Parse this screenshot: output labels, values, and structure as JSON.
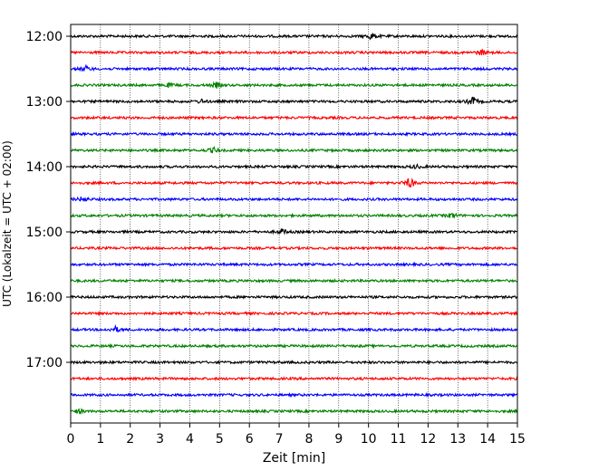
{
  "chart_data": {
    "type": "line",
    "title": "",
    "xlabel": "Zeit  [min]",
    "ylabel": "UTC (Lokalzeit = UTC + 02:00)",
    "xlim": [
      0,
      15
    ],
    "x_ticks": [
      "0",
      "1",
      "2",
      "3",
      "4",
      "5",
      "6",
      "7",
      "8",
      "9",
      "10",
      "11",
      "12",
      "13",
      "14",
      "15"
    ],
    "y_tick_labels": [
      "12:00",
      "13:00",
      "14:00",
      "15:00",
      "16:00",
      "17:00"
    ],
    "grid_x": true,
    "legend": "none",
    "series_colors": [
      "#000000",
      "#ff0000",
      "#0000ff",
      "#008000"
    ],
    "traces": [
      {
        "start": "12:00",
        "color": "#000000"
      },
      {
        "start": "12:15",
        "color": "#ff0000"
      },
      {
        "start": "12:30",
        "color": "#0000ff"
      },
      {
        "start": "12:45",
        "color": "#008000"
      },
      {
        "start": "13:00",
        "color": "#000000"
      },
      {
        "start": "13:15",
        "color": "#ff0000"
      },
      {
        "start": "13:30",
        "color": "#0000ff"
      },
      {
        "start": "13:45",
        "color": "#008000"
      },
      {
        "start": "14:00",
        "color": "#000000"
      },
      {
        "start": "14:15",
        "color": "#ff0000"
      },
      {
        "start": "14:30",
        "color": "#0000ff"
      },
      {
        "start": "14:45",
        "color": "#008000"
      },
      {
        "start": "15:00",
        "color": "#000000"
      },
      {
        "start": "15:15",
        "color": "#ff0000"
      },
      {
        "start": "15:30",
        "color": "#0000ff"
      },
      {
        "start": "15:45",
        "color": "#008000"
      },
      {
        "start": "16:00",
        "color": "#000000"
      },
      {
        "start": "16:15",
        "color": "#ff0000"
      },
      {
        "start": "16:30",
        "color": "#0000ff"
      },
      {
        "start": "16:45",
        "color": "#008000"
      },
      {
        "start": "17:00",
        "color": "#000000"
      },
      {
        "start": "17:15",
        "color": "#ff0000"
      },
      {
        "start": "17:30",
        "color": "#0000ff"
      },
      {
        "start": "17:45",
        "color": "#008000"
      }
    ],
    "events": [
      {
        "trace": "12:00",
        "minute": 10.1,
        "amp": 4
      },
      {
        "trace": "12:15",
        "minute": 13.8,
        "amp": 3
      },
      {
        "trace": "12:30",
        "minute": 0.5,
        "amp": 3
      },
      {
        "trace": "12:45",
        "minute": 3.3,
        "amp": 2
      },
      {
        "trace": "12:45",
        "minute": 4.9,
        "amp": 3
      },
      {
        "trace": "13:00",
        "minute": 4.4,
        "amp": 2
      },
      {
        "trace": "13:00",
        "minute": 13.5,
        "amp": 5
      },
      {
        "trace": "13:45",
        "minute": 4.8,
        "amp": 3
      },
      {
        "trace": "14:00",
        "minute": 11.6,
        "amp": 2
      },
      {
        "trace": "14:15",
        "minute": 11.4,
        "amp": 6
      },
      {
        "trace": "14:30",
        "minute": 0.4,
        "amp": 3
      },
      {
        "trace": "14:45",
        "minute": 12.8,
        "amp": 3
      },
      {
        "trace": "15:00",
        "minute": 7.1,
        "amp": 3
      },
      {
        "trace": "16:30",
        "minute": 1.5,
        "amp": 3
      },
      {
        "trace": "17:45",
        "minute": 0.3,
        "amp": 2
      }
    ]
  }
}
